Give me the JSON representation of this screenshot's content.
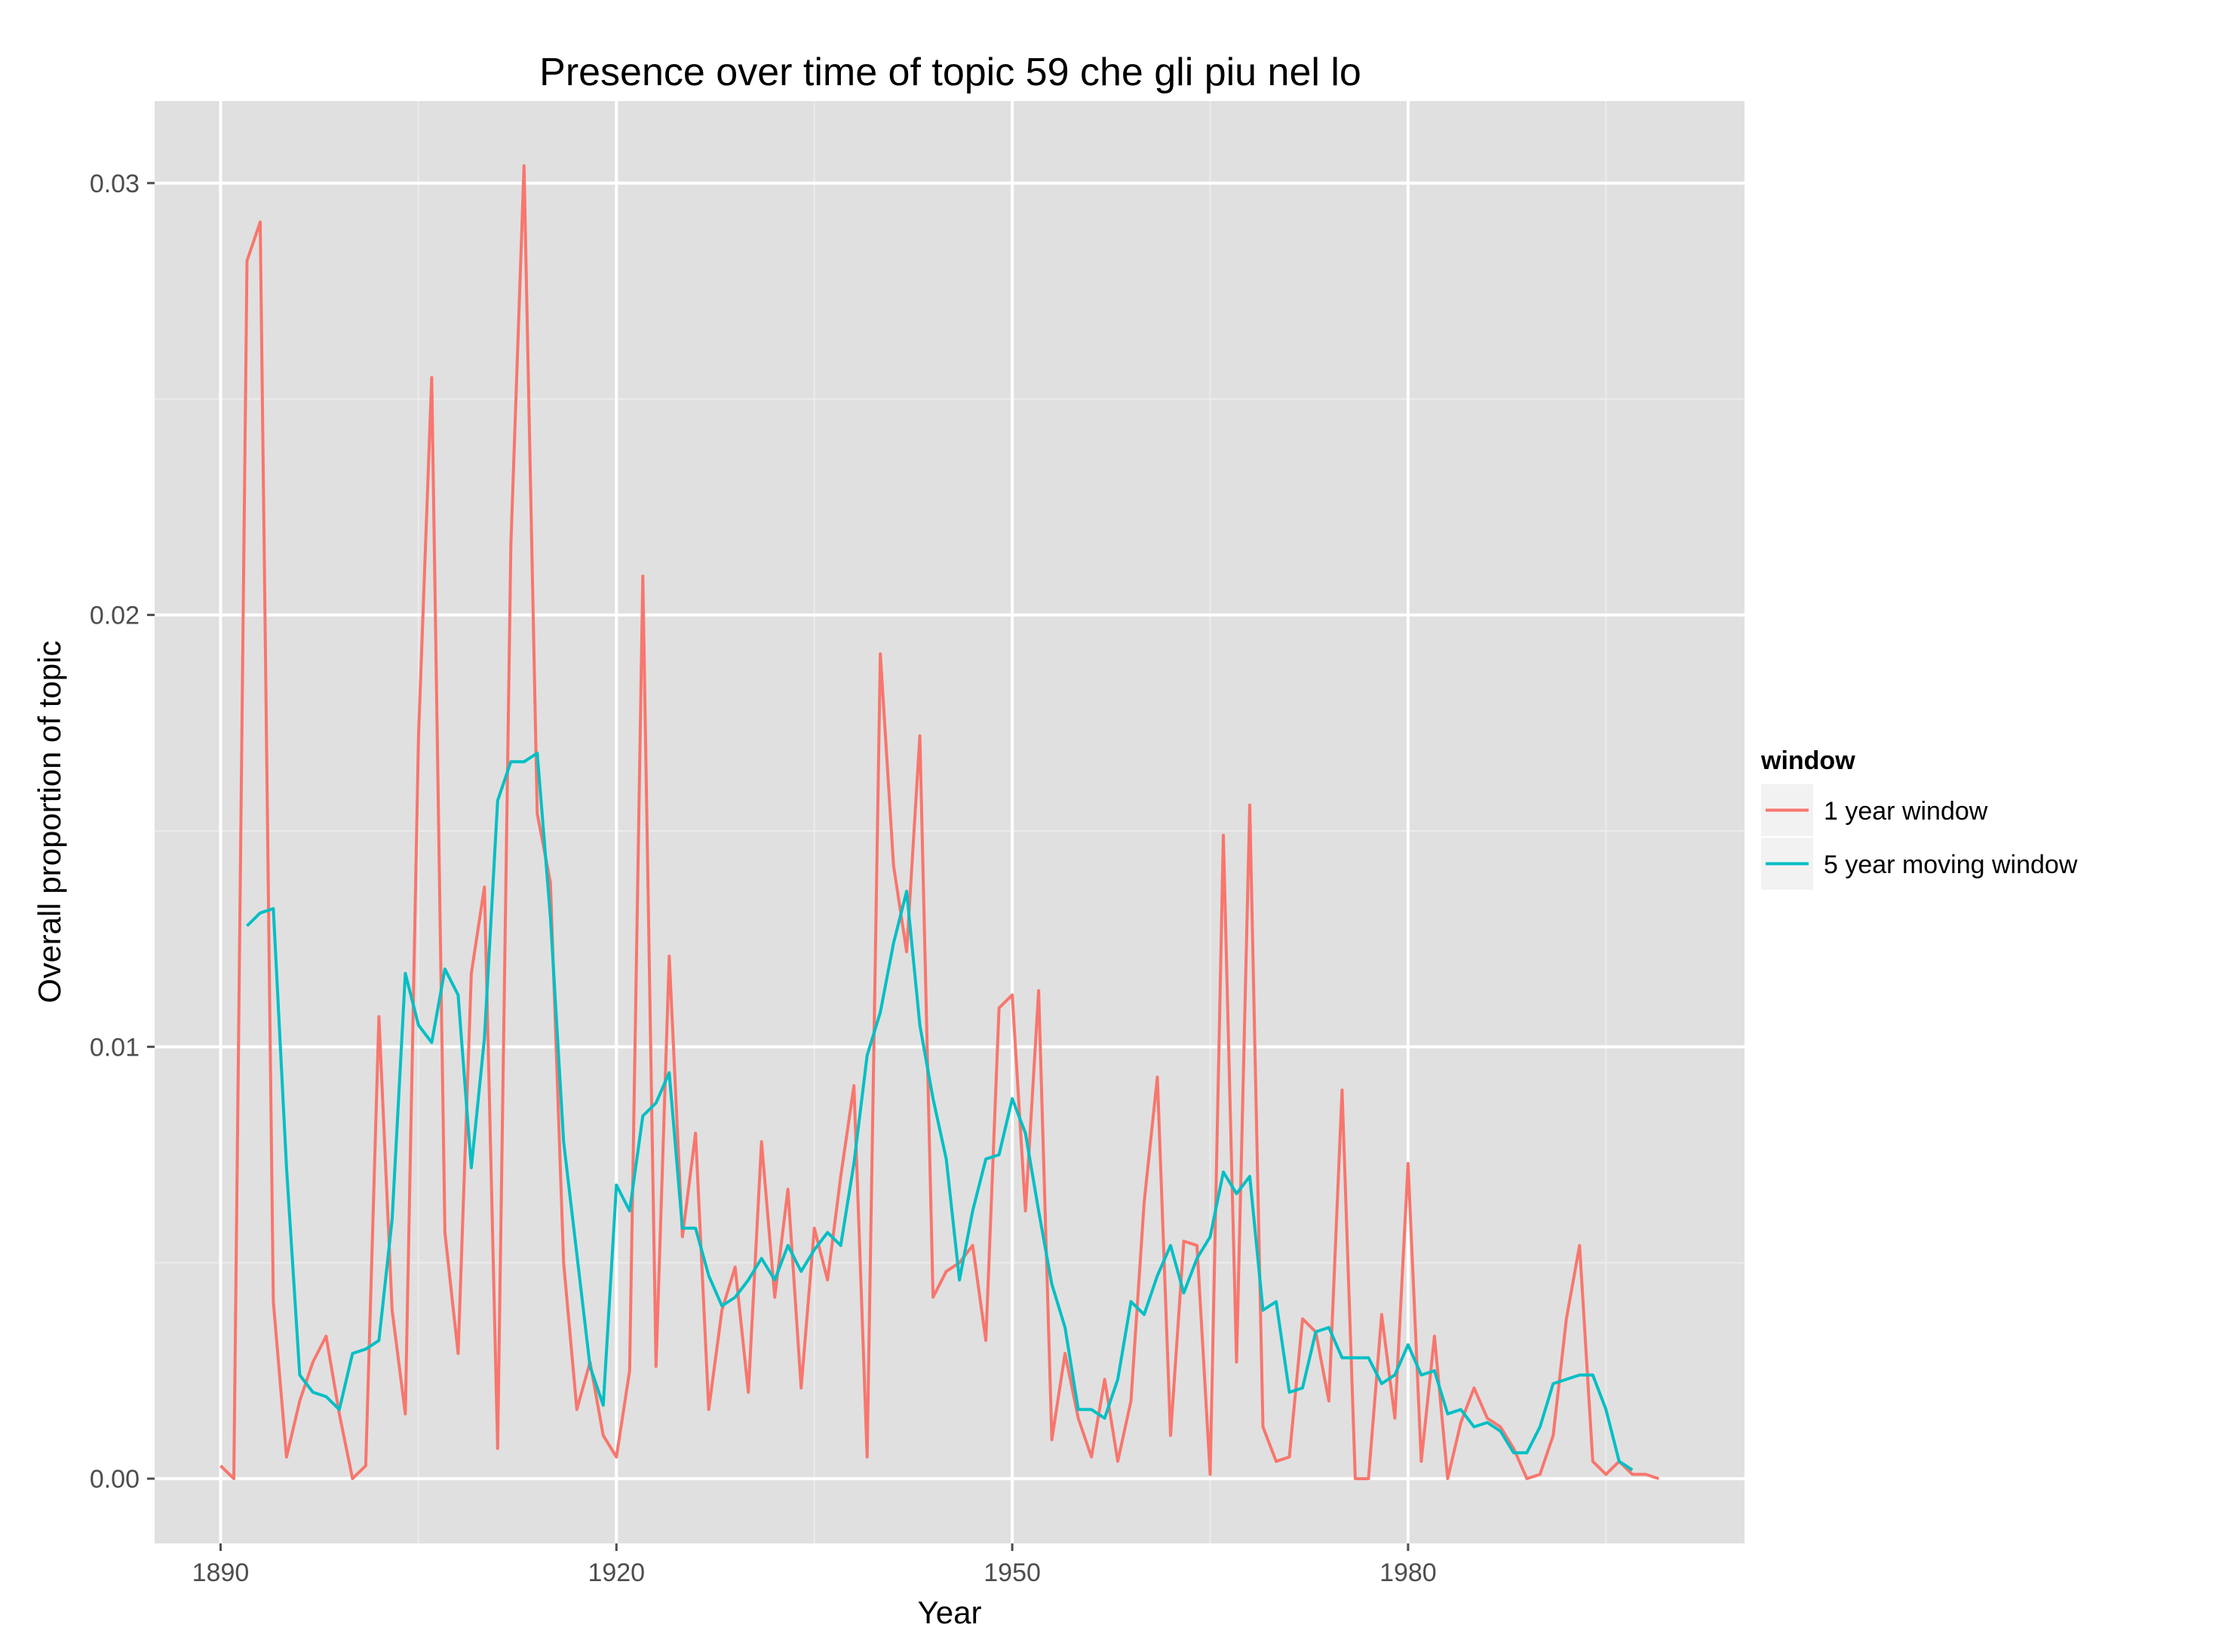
{
  "chart_data": {
    "type": "line",
    "title": "Presence over time of topic 59 che gli piu nel lo",
    "xlabel": "Year",
    "ylabel": "Overall proportion of topic",
    "xlim": [
      1885,
      2005.5
    ],
    "ylim": [
      -0.0015,
      0.0319
    ],
    "x_ticks": [
      1890,
      1920,
      1950,
      1980
    ],
    "x_tick_labels": [
      "1890",
      "1920",
      "1950",
      "1980"
    ],
    "y_ticks": [
      0.0,
      0.01,
      0.02,
      0.03
    ],
    "y_tick_labels": [
      "0.00",
      "0.01",
      "0.02",
      "0.03"
    ],
    "grid": true,
    "legend": {
      "title": "window",
      "position": "right"
    },
    "colors": {
      "panel": "#e0e0e0",
      "grid_major": "#ffffff",
      "grid_minor": "#ececec"
    },
    "series": [
      {
        "name": "1 year window",
        "color": "#f8766d",
        "x": [
          1890,
          1891,
          1892,
          1893,
          1894,
          1895,
          1896,
          1897,
          1898,
          1899,
          1900,
          1901,
          1902,
          1903,
          1904,
          1905,
          1906,
          1907,
          1908,
          1909,
          1910,
          1911,
          1912,
          1913,
          1914,
          1915,
          1916,
          1917,
          1918,
          1919,
          1920,
          1921,
          1922,
          1923,
          1924,
          1925,
          1926,
          1927,
          1928,
          1929,
          1930,
          1931,
          1932,
          1933,
          1934,
          1935,
          1936,
          1937,
          1938,
          1939,
          1940,
          1941,
          1942,
          1943,
          1944,
          1945,
          1946,
          1947,
          1948,
          1949,
          1950,
          1951,
          1952,
          1953,
          1954,
          1955,
          1956,
          1957,
          1958,
          1959,
          1960,
          1961,
          1962,
          1963,
          1964,
          1965,
          1966,
          1967,
          1968,
          1969,
          1970,
          1971,
          1972,
          1973,
          1974,
          1975,
          1976,
          1977,
          1978,
          1979,
          1980,
          1981,
          1982,
          1983,
          1984,
          1985,
          1986,
          1987,
          1988,
          1989,
          1990,
          1991,
          1992,
          1993,
          1994,
          1995,
          1996,
          1997,
          1998,
          1999,
          2000,
          2001
        ],
        "y": [
          0.0003,
          0.0,
          0.0282,
          0.0291,
          0.0041,
          0.0005,
          0.0018,
          0.0027,
          0.0033,
          0.0015,
          0.0,
          0.0003,
          0.0107,
          0.0039,
          0.0015,
          0.0172,
          0.0255,
          0.0057,
          0.0029,
          0.0117,
          0.0137,
          0.0007,
          0.0216,
          0.0304,
          0.0154,
          0.0138,
          0.005,
          0.0016,
          0.0027,
          0.001,
          0.0005,
          0.0025,
          0.0209,
          0.0026,
          0.0121,
          0.0056,
          0.008,
          0.0016,
          0.0039,
          0.0049,
          0.002,
          0.0078,
          0.0042,
          0.0067,
          0.0021,
          0.0058,
          0.0046,
          0.007,
          0.0091,
          0.0005,
          0.0191,
          0.0142,
          0.0122,
          0.0172,
          0.0042,
          0.0048,
          0.005,
          0.0054,
          0.0032,
          0.0109,
          0.0112,
          0.0062,
          0.0113,
          0.0009,
          0.0029,
          0.0014,
          0.0005,
          0.0023,
          0.0004,
          0.0018,
          0.0064,
          0.0093,
          0.001,
          0.0055,
          0.0054,
          0.0001,
          0.0149,
          0.0027,
          0.0156,
          0.0012,
          0.0004,
          0.0005,
          0.0037,
          0.0034,
          0.0018,
          0.009,
          0.0,
          0.0,
          0.0038,
          0.0014,
          0.0073,
          0.0004,
          0.0033,
          0.0,
          0.0013,
          0.0021,
          0.0014,
          0.0012,
          0.0007,
          0.0,
          0.0001,
          0.001,
          0.0037,
          0.0054,
          0.0004,
          0.0001,
          0.0004,
          0.0001,
          0.0001,
          0.0,
          null,
          null
        ]
      },
      {
        "name": "5 year moving window",
        "color": "#00bfc4",
        "x": [
          1892,
          1893,
          1894,
          1895,
          1896,
          1897,
          1898,
          1899,
          1900,
          1901,
          1902,
          1903,
          1904,
          1905,
          1906,
          1907,
          1908,
          1909,
          1910,
          1911,
          1912,
          1913,
          1914,
          1915,
          1916,
          1917,
          1918,
          1919,
          1920,
          1921,
          1922,
          1923,
          1924,
          1925,
          1926,
          1927,
          1928,
          1929,
          1930,
          1931,
          1932,
          1933,
          1934,
          1935,
          1936,
          1937,
          1938,
          1939,
          1940,
          1941,
          1942,
          1943,
          1944,
          1945,
          1946,
          1947,
          1948,
          1949,
          1950,
          1951,
          1952,
          1953,
          1954,
          1955,
          1956,
          1957,
          1958,
          1959,
          1960,
          1961,
          1962,
          1963,
          1964,
          1965,
          1966,
          1967,
          1968,
          1969,
          1970,
          1971,
          1972,
          1973,
          1974,
          1975,
          1976,
          1977,
          1978,
          1979,
          1980,
          1981,
          1982,
          1983,
          1984,
          1985,
          1986,
          1987,
          1988,
          1989,
          1990,
          1991,
          1992,
          1993,
          1994,
          1995,
          1996,
          1997,
          1998,
          1999
        ],
        "y": [
          0.0128,
          0.0131,
          0.0132,
          0.0072,
          0.0024,
          0.002,
          0.0019,
          0.0016,
          0.0029,
          0.003,
          0.0032,
          0.006,
          0.0117,
          0.0105,
          0.0101,
          0.0118,
          0.0112,
          0.0072,
          0.0102,
          0.0157,
          0.0166,
          0.0166,
          0.0168,
          0.013,
          0.0078,
          0.0052,
          0.0026,
          0.0017,
          0.0068,
          0.0062,
          0.0084,
          0.0087,
          0.0094,
          0.0058,
          0.0058,
          0.0047,
          0.004,
          0.0042,
          0.0046,
          0.0051,
          0.0046,
          0.0054,
          0.0048,
          0.0053,
          0.0057,
          0.0054,
          0.0073,
          0.0098,
          0.0108,
          0.0124,
          0.0136,
          0.0105,
          0.0088,
          0.0074,
          0.0046,
          0.0062,
          0.0074,
          0.0075,
          0.0088,
          0.008,
          0.0062,
          0.0045,
          0.0035,
          0.0016,
          0.0016,
          0.0014,
          0.0023,
          0.0041,
          0.0038,
          0.0047,
          0.0054,
          0.0043,
          0.0051,
          0.0056,
          0.0071,
          0.0066,
          0.007,
          0.0039,
          0.0041,
          0.002,
          0.0021,
          0.0034,
          0.0035,
          0.0028,
          0.0028,
          0.0028,
          0.0022,
          0.0024,
          0.0031,
          0.0024,
          0.0025,
          0.0015,
          0.0016,
          0.0012,
          0.0013,
          0.0011,
          0.0006,
          0.0006,
          0.0012,
          0.0022,
          0.0023,
          0.0024,
          0.0024,
          0.0016,
          0.0004,
          0.0002,
          null,
          null
        ]
      }
    ]
  }
}
